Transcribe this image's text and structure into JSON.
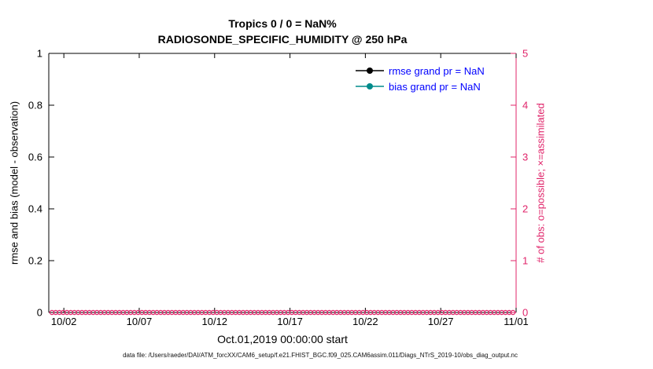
{
  "chart_data": {
    "type": "line",
    "title_line1": "Tropics 0 / 0 = NaN%",
    "title_line2": "RADIOSONDE_SPECIFIC_HUMIDITY @ 250 hPa",
    "left_axis": {
      "label": "rmse and bias (model - observation)",
      "ticks": [
        0,
        0.2,
        0.4,
        0.6,
        0.8,
        1
      ],
      "tick_labels": [
        "0",
        "0.2",
        "0.4",
        "0.6",
        "0.8",
        "1"
      ],
      "range": [
        0,
        1
      ],
      "color": "#000000"
    },
    "right_axis": {
      "label": "# of obs: o=possible; ×=assimilated",
      "ticks": [
        0,
        1,
        2,
        3,
        4,
        5
      ],
      "tick_labels": [
        "0",
        "1",
        "2",
        "3",
        "4",
        "5"
      ],
      "range": [
        0,
        5
      ],
      "color": "#e0246a"
    },
    "x_axis": {
      "label": "Oct.01,2019 00:00:00 start",
      "tick_labels": [
        "10/02",
        "10/07",
        "10/12",
        "10/17",
        "10/22",
        "10/27",
        "11/01"
      ],
      "tick_days": [
        1,
        6,
        11,
        16,
        21,
        26,
        31
      ],
      "range_days": [
        0,
        31
      ]
    },
    "legend": [
      {
        "label": "rmse grand pr = NaN",
        "line_color": "#000000"
      },
      {
        "label": "bias grand pr = NaN",
        "line_color": "#008b8b"
      }
    ],
    "legend_text_color": "#0000ff",
    "obs_markers": {
      "value": 0,
      "count": 124,
      "marker": "o",
      "color": "#e0246a"
    },
    "footer": "data file: /Users/raeder/DAI/ATM_forcXX/CAM6_setup/f.e21.FHIST_BGC.f09_025.CAM6assim.011/Diags_NTrS_2019-10/obs_diag_output.nc"
  }
}
